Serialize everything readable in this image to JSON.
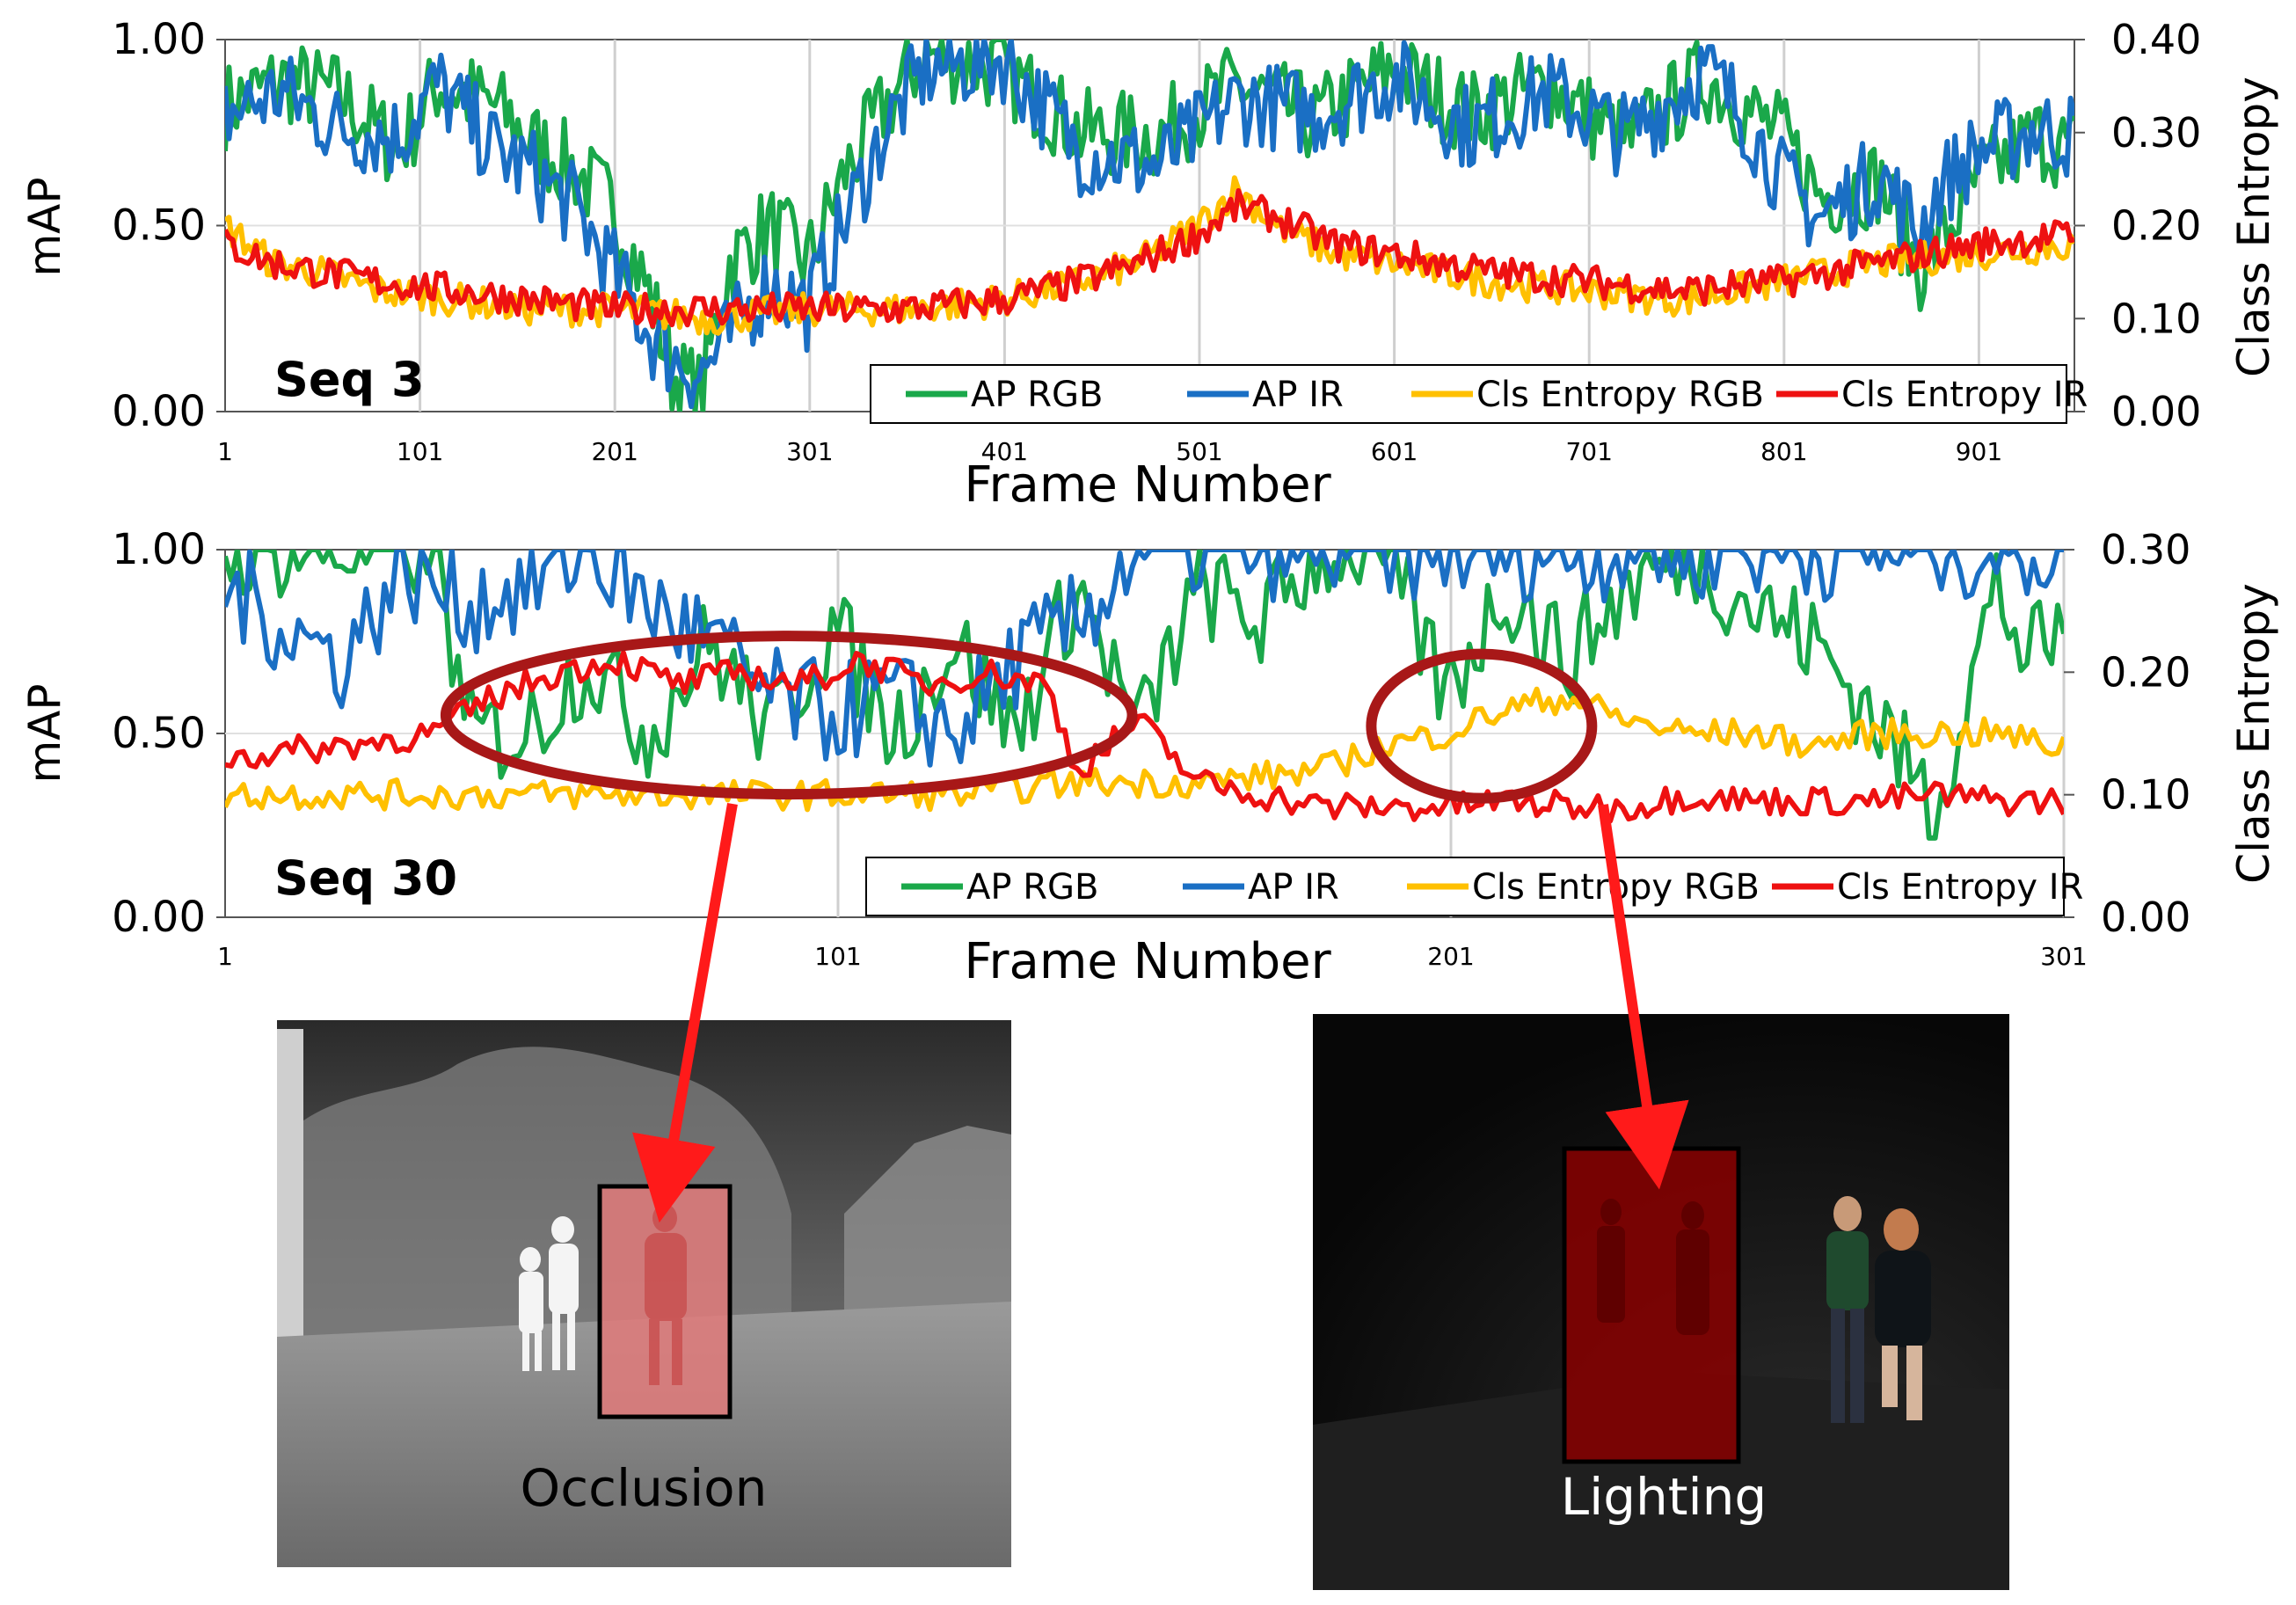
{
  "colors": {
    "ap_rgb": "#1aa84a",
    "ap_ir": "#1a6fc4",
    "cls_entropy_rgb": "#ffc000",
    "cls_entropy_ir": "#ee1111",
    "annotation_red": "#a81818",
    "arrow_red": "#ff1a1a",
    "box_fill": "#c83c3c"
  },
  "chart_data": [
    {
      "type": "line",
      "label": "Seq 3",
      "xlabel": "Frame Number",
      "ylabel": "mAP",
      "y2label": "Class Entropy",
      "xlim": [
        1,
        950
      ],
      "xticks": [
        "1",
        "101",
        "201",
        "301",
        "401",
        "501",
        "601",
        "701",
        "801",
        "901"
      ],
      "ylim": [
        0,
        1
      ],
      "yticks": [
        "0.00",
        "0.50",
        "1.00"
      ],
      "y2lim": [
        0,
        0.4
      ],
      "y2ticks": [
        "0.00",
        "0.10",
        "0.20",
        "0.30",
        "0.40"
      ],
      "grid": "vertical",
      "legend_position": "bottom-right",
      "series": [
        {
          "name": "AP RGB",
          "axis": "left",
          "x": [
            1,
            30,
            60,
            90,
            110,
            140,
            160,
            180,
            200,
            220,
            230,
            245,
            260,
            280,
            300,
            320,
            340,
            360,
            400,
            440,
            480,
            520,
            560,
            600,
            640,
            680,
            720,
            760,
            780,
            800,
            820,
            850,
            870,
            880,
            900,
            930,
            950
          ],
          "y": [
            0.82,
            0.89,
            0.85,
            0.7,
            0.88,
            0.82,
            0.72,
            0.65,
            0.55,
            0.3,
            0.1,
            0.05,
            0.4,
            0.5,
            0.4,
            0.65,
            0.82,
            0.96,
            0.92,
            0.75,
            0.74,
            0.88,
            0.78,
            0.92,
            0.8,
            0.88,
            0.72,
            0.9,
            0.82,
            0.74,
            0.58,
            0.62,
            0.38,
            0.45,
            0.62,
            0.74,
            0.7
          ]
        },
        {
          "name": "AP IR",
          "axis": "left",
          "x": [
            1,
            30,
            60,
            90,
            110,
            140,
            160,
            180,
            200,
            220,
            230,
            245,
            260,
            280,
            300,
            320,
            340,
            360,
            400,
            440,
            480,
            520,
            560,
            600,
            640,
            680,
            720,
            760,
            780,
            800,
            820,
            850,
            870,
            880,
            900,
            930,
            950
          ],
          "y": [
            0.8,
            0.86,
            0.76,
            0.74,
            0.88,
            0.7,
            0.64,
            0.55,
            0.38,
            0.2,
            0.15,
            0.1,
            0.2,
            0.35,
            0.28,
            0.52,
            0.76,
            0.92,
            0.95,
            0.7,
            0.66,
            0.84,
            0.8,
            0.9,
            0.76,
            0.86,
            0.74,
            0.92,
            0.8,
            0.62,
            0.52,
            0.64,
            0.48,
            0.6,
            0.7,
            0.76,
            0.74
          ]
        },
        {
          "name": "Cls Entropy RGB",
          "axis": "right",
          "x": [
            1,
            25,
            50,
            80,
            120,
            160,
            200,
            250,
            300,
            350,
            400,
            440,
            470,
            500,
            520,
            540,
            570,
            600,
            650,
            700,
            750,
            800,
            850,
            900,
            950
          ],
          "y": [
            0.2,
            0.16,
            0.15,
            0.13,
            0.12,
            0.11,
            0.11,
            0.1,
            0.11,
            0.11,
            0.12,
            0.14,
            0.16,
            0.2,
            0.24,
            0.2,
            0.17,
            0.16,
            0.14,
            0.13,
            0.12,
            0.14,
            0.16,
            0.17,
            0.18
          ]
        },
        {
          "name": "Cls Entropy IR",
          "axis": "right",
          "x": [
            1,
            25,
            50,
            80,
            120,
            160,
            200,
            250,
            300,
            350,
            400,
            440,
            470,
            500,
            520,
            540,
            570,
            600,
            650,
            700,
            750,
            800,
            850,
            900,
            950
          ],
          "y": [
            0.18,
            0.16,
            0.15,
            0.14,
            0.13,
            0.12,
            0.11,
            0.11,
            0.11,
            0.11,
            0.12,
            0.14,
            0.16,
            0.19,
            0.22,
            0.21,
            0.18,
            0.17,
            0.15,
            0.14,
            0.13,
            0.14,
            0.16,
            0.18,
            0.19
          ]
        }
      ]
    },
    {
      "type": "line",
      "label": "Seq 30",
      "xlabel": "Frame Number",
      "ylabel": "mAP",
      "y2label": "Class Entropy",
      "xlim": [
        1,
        301
      ],
      "xticks": [
        "1",
        "101",
        "201",
        "301"
      ],
      "ylim": [
        0,
        1
      ],
      "yticks": [
        "0.00",
        "0.50",
        "1.00"
      ],
      "y2lim": [
        0,
        0.3
      ],
      "y2ticks": [
        "0.00",
        "0.10",
        "0.20",
        "0.30"
      ],
      "grid": "vertical",
      "legend_position": "bottom-right",
      "series": [
        {
          "name": "AP RGB",
          "axis": "left",
          "x": [
            1,
            20,
            36,
            40,
            50,
            60,
            70,
            80,
            90,
            100,
            110,
            120,
            130,
            140,
            150,
            160,
            170,
            180,
            190,
            200,
            210,
            220,
            230,
            240,
            250,
            260,
            270,
            280,
            290,
            295,
            299
          ],
          "y": [
            1.0,
            1.0,
            1.0,
            0.5,
            0.5,
            0.7,
            0.5,
            0.75,
            0.5,
            0.8,
            0.5,
            0.75,
            0.5,
            0.9,
            0.5,
            0.9,
            0.8,
            1.0,
            1.0,
            0.6,
            0.9,
            0.7,
            0.9,
            1.0,
            0.85,
            0.75,
            0.55,
            0.3,
            0.9,
            0.7,
            0.75
          ]
        },
        {
          "name": "AP IR",
          "axis": "left",
          "x": [
            1,
            10,
            20,
            30,
            40,
            50,
            60,
            70,
            80,
            90,
            100,
            110,
            120,
            130,
            140,
            150,
            160,
            170,
            180,
            200,
            220,
            240,
            260,
            280,
            300
          ],
          "y": [
            0.9,
            0.8,
            0.7,
            0.95,
            0.85,
            0.9,
            1.0,
            0.85,
            0.75,
            0.6,
            0.55,
            0.6,
            0.5,
            0.7,
            0.8,
            1.0,
            1.0,
            1.0,
            1.0,
            1.0,
            1.0,
            1.0,
            1.0,
            1.0,
            1.0
          ]
        },
        {
          "name": "Cls Entropy RGB",
          "axis": "right",
          "x": [
            1,
            20,
            40,
            60,
            80,
            100,
            120,
            140,
            160,
            180,
            190,
            200,
            210,
            220,
            230,
            240,
            250,
            260,
            270,
            280,
            290,
            299
          ],
          "y": [
            0.1,
            0.1,
            0.1,
            0.1,
            0.1,
            0.1,
            0.1,
            0.11,
            0.11,
            0.12,
            0.14,
            0.15,
            0.17,
            0.18,
            0.16,
            0.15,
            0.15,
            0.14,
            0.15,
            0.15,
            0.15,
            0.14
          ]
        },
        {
          "name": "Cls Entropy IR",
          "axis": "right",
          "x": [
            1,
            20,
            35,
            45,
            55,
            65,
            75,
            85,
            95,
            105,
            115,
            125,
            135,
            140,
            150,
            160,
            170,
            180,
            190,
            200,
            210,
            220,
            230,
            240,
            250,
            260,
            270,
            280,
            290,
            299
          ],
          "y": [
            0.13,
            0.14,
            0.15,
            0.18,
            0.2,
            0.21,
            0.19,
            0.2,
            0.19,
            0.21,
            0.19,
            0.2,
            0.19,
            0.12,
            0.16,
            0.11,
            0.1,
            0.09,
            0.09,
            0.09,
            0.095,
            0.09,
            0.09,
            0.1,
            0.095,
            0.095,
            0.095,
            0.1,
            0.095,
            0.095
          ]
        }
      ],
      "annotations": [
        {
          "type": "ellipse",
          "x_range": [
            37,
            149
          ],
          "y": 0.55
        },
        {
          "type": "ellipse",
          "x_range": [
            188,
            224
          ],
          "y": 0.52
        }
      ]
    }
  ],
  "insets": [
    {
      "kind": "thermal",
      "caption": "Occlusion"
    },
    {
      "kind": "rgb-night",
      "caption": "Lighting"
    }
  ]
}
